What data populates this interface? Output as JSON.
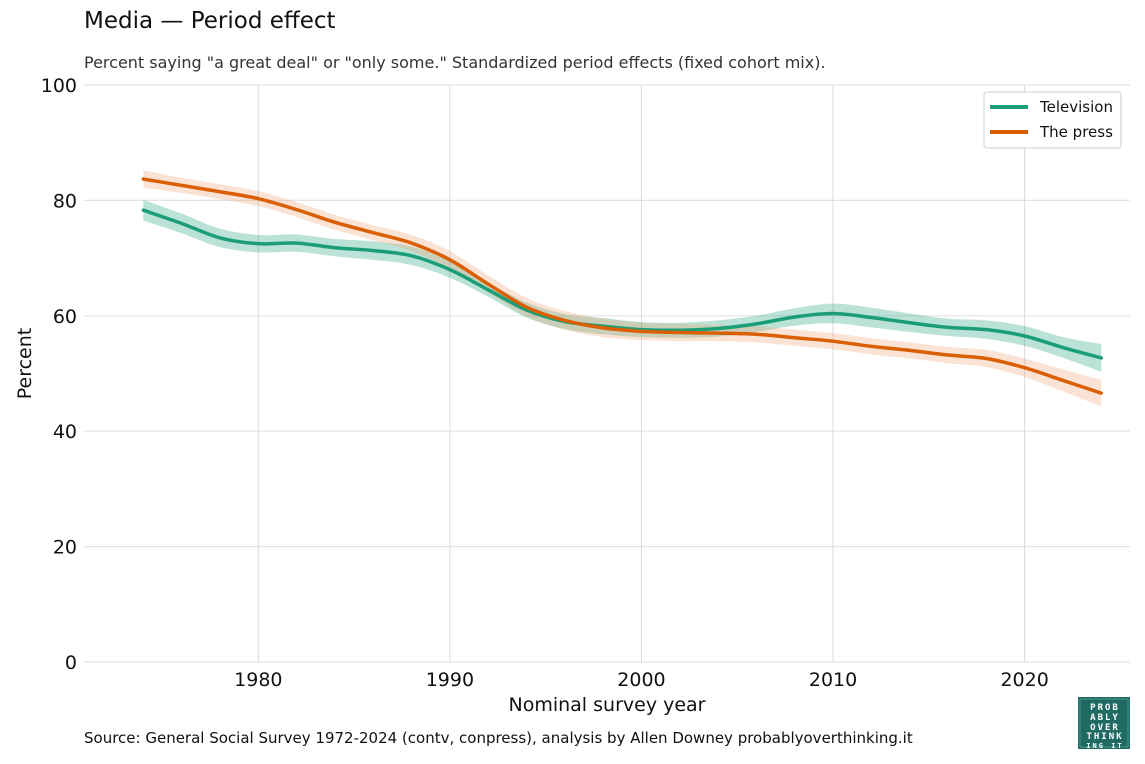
{
  "title": "Media — Period effect",
  "subtitle": "Percent saying \"a great deal\" or \"only some.\" Standardized period effects (fixed cohort mix).",
  "source": "Source: General Social Survey 1972-2024 (contv, conpress), analysis by Allen Downey probablyoverthinking.it",
  "logo_text": "PROBABLY OVERTHINKING IT",
  "colors": {
    "grid": "#e4e4e4",
    "vgrid": "#d9d9d9"
  },
  "chart_data": {
    "type": "line",
    "xlabel": "Nominal survey year",
    "ylabel": "Percent",
    "xlim": [
      1970.9,
      2025.5
    ],
    "ylim": [
      0,
      100
    ],
    "xticks": [
      1980,
      1990,
      2000,
      2010,
      2020
    ],
    "yticks": [
      0,
      20,
      40,
      60,
      80,
      100
    ],
    "grid": true,
    "legend": "top-right",
    "series": [
      {
        "name": "Television",
        "color": "#1b9e77",
        "band_color": "#1b9e77",
        "x": [
          1974,
          1976,
          1978,
          1980,
          1982,
          1984,
          1986,
          1988,
          1990,
          1992,
          1994,
          1996,
          1998,
          2000,
          2002,
          2004,
          2006,
          2008,
          2010,
          2012,
          2014,
          2016,
          2018,
          2020,
          2022,
          2024
        ],
        "y": [
          78.3,
          76.0,
          73.5,
          72.5,
          72.6,
          71.8,
          71.3,
          70.4,
          68.0,
          64.5,
          61.0,
          59.0,
          58.2,
          57.6,
          57.5,
          57.8,
          58.6,
          59.8,
          60.4,
          59.7,
          58.8,
          58.0,
          57.6,
          56.5,
          54.5,
          52.7
        ],
        "lower": [
          76.5,
          74.3,
          71.9,
          71.0,
          71.1,
          70.3,
          69.7,
          68.8,
          66.6,
          63.3,
          59.7,
          57.7,
          56.8,
          56.3,
          56.2,
          56.4,
          57.2,
          58.3,
          58.7,
          58.0,
          57.2,
          56.5,
          56.0,
          54.8,
          52.7,
          50.3
        ],
        "upper": [
          80.1,
          77.7,
          75.1,
          74.0,
          74.1,
          73.3,
          72.9,
          72.0,
          69.4,
          65.7,
          62.3,
          60.3,
          59.6,
          58.9,
          58.8,
          59.2,
          60.0,
          61.3,
          62.1,
          61.4,
          60.4,
          59.5,
          59.2,
          58.2,
          56.3,
          55.1
        ]
      },
      {
        "name": "The press",
        "color": "#d95f02",
        "band_color": "#f0a070",
        "x": [
          1974,
          1976,
          1978,
          1980,
          1982,
          1984,
          1986,
          1988,
          1990,
          1992,
          1994,
          1996,
          1998,
          2000,
          2002,
          2004,
          2006,
          2008,
          2010,
          2012,
          2014,
          2016,
          2018,
          2020,
          2022,
          2024
        ],
        "y": [
          83.7,
          82.6,
          81.5,
          80.3,
          78.4,
          76.2,
          74.4,
          72.6,
          69.7,
          65.5,
          61.5,
          59.2,
          57.9,
          57.3,
          57.1,
          57.0,
          56.8,
          56.2,
          55.6,
          54.7,
          54.0,
          53.2,
          52.6,
          51.0,
          48.8,
          46.6
        ],
        "lower": [
          82.2,
          81.3,
          80.2,
          79.0,
          77.1,
          74.9,
          73.1,
          71.2,
          68.2,
          64.0,
          59.9,
          57.6,
          56.3,
          55.8,
          55.6,
          55.6,
          55.4,
          54.8,
          54.2,
          53.3,
          52.6,
          51.8,
          51.1,
          49.4,
          46.9,
          44.3
        ],
        "upper": [
          85.2,
          83.9,
          82.8,
          81.6,
          79.7,
          77.5,
          75.7,
          74.0,
          71.2,
          67.0,
          63.1,
          60.8,
          59.5,
          58.8,
          58.6,
          58.4,
          58.2,
          57.6,
          57.0,
          56.1,
          55.4,
          54.6,
          54.1,
          52.6,
          50.7,
          48.9
        ]
      }
    ]
  }
}
